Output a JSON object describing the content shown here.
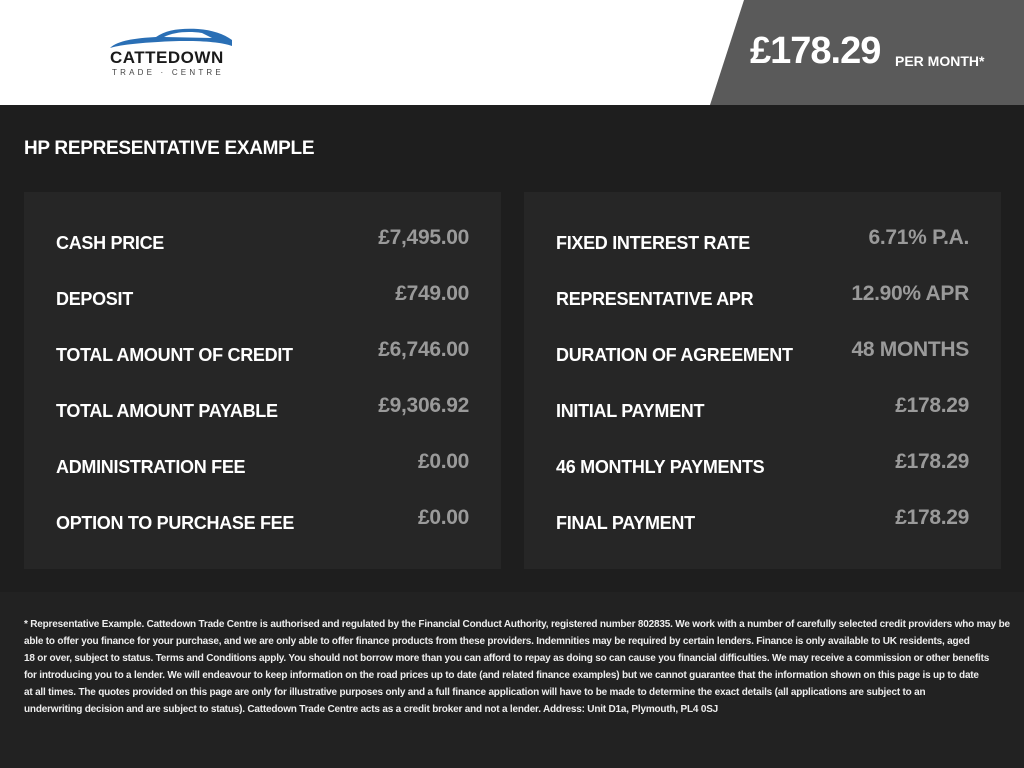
{
  "header": {
    "logo_text": "CATTEDOWN",
    "logo_sub": "TRADE · CENTRE",
    "monthly_price": "£178.29",
    "per_month": "PER MONTH*"
  },
  "title": "HP REPRESENTATIVE EXAMPLE",
  "left_panel": [
    {
      "label": "CASH PRICE",
      "value": "£7,495.00"
    },
    {
      "label": "DEPOSIT",
      "value": "£749.00"
    },
    {
      "label": "TOTAL AMOUNT OF CREDIT",
      "value": "£6,746.00"
    },
    {
      "label": "TOTAL AMOUNT PAYABLE",
      "value": "£9,306.92"
    },
    {
      "label": "ADMINISTRATION FEE",
      "value": "£0.00"
    },
    {
      "label": "OPTION TO PURCHASE FEE",
      "value": "£0.00"
    }
  ],
  "right_panel": [
    {
      "label": "FIXED INTEREST RATE",
      "value": "6.71% P.A."
    },
    {
      "label": "REPRESENTATIVE APR",
      "value": "12.90% APR"
    },
    {
      "label": "DURATION OF AGREEMENT",
      "value": "48 MONTHS"
    },
    {
      "label": "INITIAL PAYMENT",
      "value": "£178.29"
    },
    {
      "label": "46 MONTHLY PAYMENTS",
      "value": "£178.29"
    },
    {
      "label": "FINAL PAYMENT",
      "value": "£178.29"
    }
  ],
  "footer_lines": [
    "* Representative Example. Cattedown Trade Centre is authorised and regulated by the Financial Conduct Authority, registered number 802835. We work with a number of carefully selected credit providers who may be",
    "able to offer you finance for your purchase, and we are only able to offer finance products from these providers. Indemnities may be required by certain lenders. Finance is only available to UK residents, aged",
    "18 or over, subject to status. Terms and Conditions apply. You should not borrow more than you can afford to repay as doing so can cause you financial difficulties. We may receive a commission or other benefits",
    "for introducing you to a lender. We will endeavour to keep information on the road prices up to date (and related finance examples) but we cannot guarantee that the information shown on this page is up to date",
    "at all times. The quotes provided on this page are only for illustrative purposes only and a full finance application will have to be made to determine the exact details (all applications are subject to an",
    "underwriting decision and are subject to status). Cattedown Trade Centre acts as a credit broker and not a lender. Address: Unit D1a, Plymouth, PL4 0SJ"
  ],
  "colors": {
    "logo_blue": "#2a6fb5",
    "value_grey": "#9a9a9a",
    "price_box": "#5a5a5a"
  }
}
